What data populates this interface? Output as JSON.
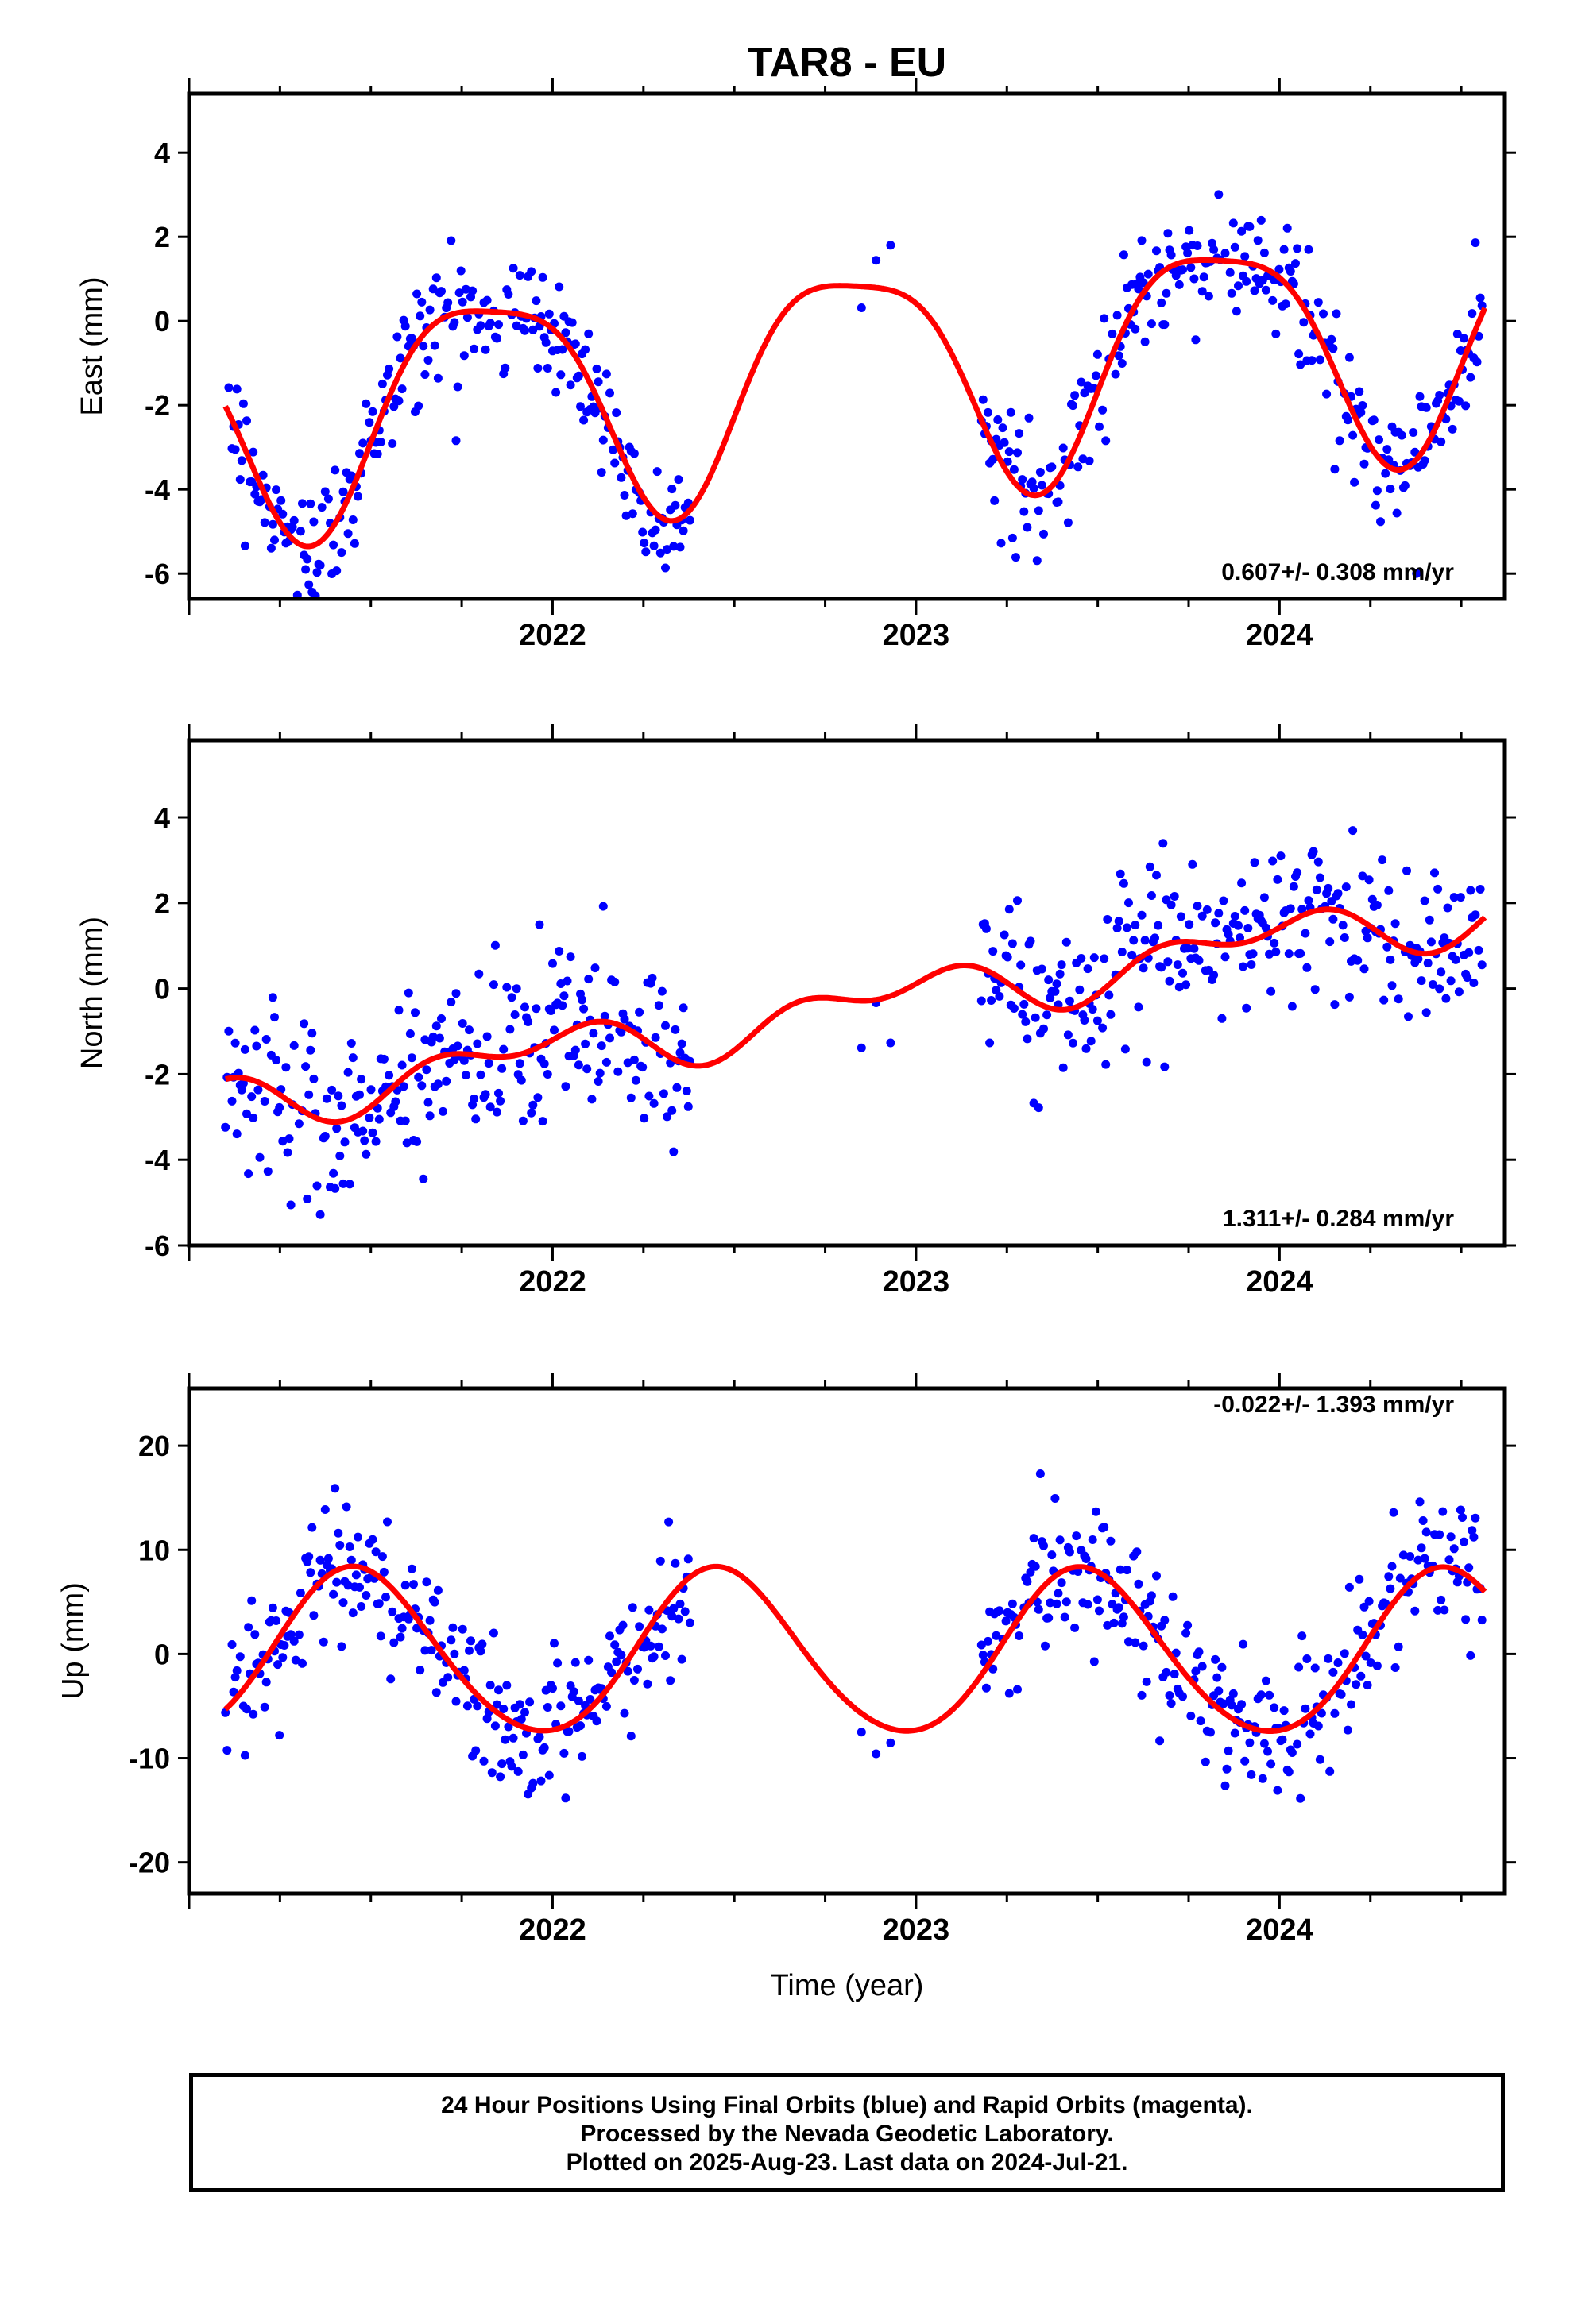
{
  "title": "TAR8 - EU",
  "xlabel": "Time (year)",
  "footer": [
    "24 Hour Positions Using Final Orbits (blue) and Rapid Orbits (magenta).",
    "Processed by the Nevada Geodetic Laboratory.",
    "Plotted on 2025-Aug-23. Last data on 2024-Jul-21."
  ],
  "colors": {
    "points": "#0000ff",
    "fit": "#ff0000",
    "frame": "#000000"
  },
  "chart_data": [
    {
      "type": "scatter",
      "ylabel": "East (mm)",
      "rate_label": "0.607+/- 0.308 mm/yr",
      "xlim": [
        2021.0,
        2024.62
      ],
      "ylim": [
        -6.6,
        5.4
      ],
      "yticks": [
        -6,
        -4,
        -2,
        0,
        2,
        4
      ],
      "xticks": [
        2022,
        2023,
        2024
      ],
      "fit_model": {
        "offset": -1.2,
        "rate": 0.607,
        "ref": 2022.8,
        "annual_sin": -2.35,
        "annual_cos": 1.2,
        "semi_sin": 0.55,
        "semi_cos": 0.3
      },
      "data_segments": [
        [
          2021.1,
          2022.38
        ],
        [
          2022.85,
          2022.93
        ],
        [
          2023.18,
          2024.56
        ]
      ],
      "noise": 0.75,
      "series": [
        {
          "name": "Final Orbits",
          "kind": "points"
        },
        {
          "name": "Trend fit",
          "kind": "line"
        }
      ]
    },
    {
      "type": "scatter",
      "ylabel": "North (mm)",
      "rate_label": "1.311+/- 0.284 mm/yr",
      "xlim": [
        2021.0,
        2024.62
      ],
      "ylim": [
        -6.0,
        5.8
      ],
      "yticks": [
        -6,
        -4,
        -2,
        0,
        2,
        4
      ],
      "xticks": [
        2022,
        2023,
        2024
      ],
      "fit_model": {
        "offset": -0.45,
        "rate": 1.311,
        "ref": 2022.8,
        "annual_sin": -0.15,
        "annual_cos": 0.45,
        "semi_sin": 0.35,
        "semi_cos": -0.15
      },
      "data_segments": [
        [
          2021.1,
          2022.38
        ],
        [
          2022.85,
          2022.93
        ],
        [
          2023.18,
          2024.56
        ]
      ],
      "noise": 0.95,
      "series": [
        {
          "name": "Final Orbits",
          "kind": "points"
        },
        {
          "name": "Trend fit",
          "kind": "line"
        }
      ]
    },
    {
      "type": "scatter",
      "ylabel": "Up (mm)",
      "rate_label": "-0.022+/- 1.393 mm/yr",
      "xlim": [
        2021.0,
        2024.62
      ],
      "ylim": [
        -23,
        25.5
      ],
      "yticks": [
        -20,
        -10,
        0,
        10,
        20
      ],
      "xticks": [
        2022,
        2023,
        2024
      ],
      "fit_model": {
        "offset": 0.0,
        "rate": -0.022,
        "ref": 2022.8,
        "annual_sin": 2.0,
        "annual_cos": -7.6,
        "semi_sin": -0.5,
        "semi_cos": 0.3
      },
      "data_segments": [
        [
          2021.1,
          2022.38
        ],
        [
          2022.85,
          2022.93
        ],
        [
          2023.18,
          2024.56
        ]
      ],
      "noise": 3.6,
      "series": [
        {
          "name": "Final Orbits",
          "kind": "points"
        },
        {
          "name": "Trend fit",
          "kind": "line"
        }
      ]
    }
  ]
}
